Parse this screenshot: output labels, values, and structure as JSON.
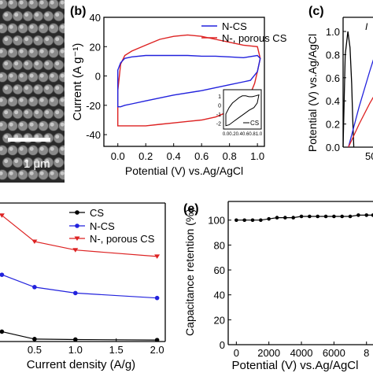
{
  "panels": {
    "a": {
      "scale_bar": "1 μm"
    },
    "b": {
      "label": "(b)",
      "xlabel": "Potential (V) vs.Ag/AgCl",
      "ylabel": "Current (A g⁻¹)",
      "xticks": [
        "0.0",
        "0.2",
        "0.4",
        "0.6",
        "0.8",
        "1.0"
      ],
      "yticks": [
        "40",
        "20",
        "0",
        "-20",
        "-40"
      ],
      "legend": [
        "N-CS",
        "N-, porous CS"
      ],
      "inset": {
        "xticks": [
          "0.0",
          "0.2",
          "0.4",
          "0.6",
          "0.8",
          "1.0"
        ],
        "yticks": [
          "1",
          "0",
          "-1",
          "-2"
        ],
        "legend": "CS"
      }
    },
    "c": {
      "label": "(c)",
      "ylabel": "Potential (V) vs.Ag/AgCl",
      "yticks": [
        "1.0",
        "0.8",
        "0.6",
        "0.4",
        "0.2",
        "0.0"
      ],
      "xtick_partial": "500",
      "legend_partial": "I"
    },
    "d": {
      "xlabel": "Current density (A/g)",
      "xticks": [
        "0.5",
        "1.0",
        "1.5",
        "2.0"
      ],
      "legend": [
        "CS",
        "N-CS",
        "N-, porous CS"
      ]
    },
    "e": {
      "label": "(e)",
      "xlabel": "Potential (V) vs.Ag/AgCl",
      "ylabel": "Capacitance retention (%)",
      "xticks": [
        "0",
        "2000",
        "4000",
        "6000",
        "8"
      ],
      "yticks": [
        "100",
        "80",
        "60",
        "40",
        "20",
        "0"
      ]
    }
  },
  "colors": {
    "n_cs": "#2222dd",
    "porous": "#dd2222",
    "cs": "#000000"
  },
  "chart_data": [
    {
      "panel": "b",
      "type": "line",
      "xlim": [
        -0.1,
        1.05
      ],
      "ylim": [
        -48,
        40
      ],
      "series": [
        {
          "name": "N-CS",
          "upper": {
            "x": [
              0.0,
              0.02,
              0.05,
              0.1,
              0.2,
              0.3,
              0.4,
              0.5,
              0.6,
              0.7,
              0.8,
              0.9,
              1.0,
              1.02
            ],
            "y": [
              4,
              9,
              12,
              13,
              14,
              14,
              14,
              14,
              13.5,
              13.5,
              13,
              12.5,
              14,
              12
            ]
          },
          "lower": {
            "x": [
              1.02,
              1.0,
              0.95,
              0.9,
              0.8,
              0.6,
              0.4,
              0.2,
              0.1,
              0.05,
              0.02,
              0.0
            ],
            "y": [
              12,
              3,
              -3,
              -4,
              -6,
              -10,
              -13,
              -17,
              -19,
              -20,
              -21,
              -21
            ]
          }
        },
        {
          "name": "N-, porous CS",
          "upper": {
            "x": [
              0.0,
              0.02,
              0.05,
              0.1,
              0.2,
              0.3,
              0.4,
              0.5,
              0.6,
              0.7,
              0.8,
              0.9,
              1.0,
              1.02
            ],
            "y": [
              -10,
              8,
              14,
              17,
              21,
              25,
              27,
              28,
              27,
              25,
              23,
              21,
              20,
              12
            ]
          },
          "lower": {
            "x": [
              1.02,
              1.0,
              0.98,
              0.95,
              0.9,
              0.85,
              0.8,
              0.7,
              0.6,
              0.5,
              0.4,
              0.3,
              0.2,
              0.1,
              0.05,
              0.0
            ],
            "y": [
              12,
              3,
              -5,
              -12,
              -18,
              -22,
              -24,
              -28,
              -30,
              -31,
              -32,
              -33,
              -34,
              -34,
              -34,
              -34
            ]
          }
        }
      ],
      "inset": {
        "xlim": [
          0,
          1.0
        ],
        "ylim": [
          -2.5,
          1.5
        ],
        "series": [
          {
            "name": "CS",
            "x": [
              0.0,
              0.1,
              0.2,
              0.3,
              0.4,
              0.5,
              0.6,
              0.7,
              0.8,
              0.9,
              1.0,
              0.95,
              0.85,
              0.7,
              0.55,
              0.4,
              0.25,
              0.1,
              0.0
            ],
            "y": [
              -1.0,
              -0.3,
              0.2,
              0.5,
              0.8,
              1.0,
              1.0,
              0.9,
              0.9,
              1.0,
              1.1,
              0.2,
              -0.3,
              -0.6,
              -1.0,
              -1.4,
              -1.8,
              -2.2,
              -2.3
            ]
          }
        ]
      }
    },
    {
      "panel": "c",
      "type": "line",
      "ylim": [
        0,
        1.1
      ],
      "series": [
        {
          "name": "CS",
          "x": [
            0,
            40,
            90,
            130,
            160,
            180,
            200
          ],
          "y": [
            0.0,
            0.8,
            1.0,
            0.86,
            0.55,
            0.25,
            0.0
          ]
        },
        {
          "name": "N-CS",
          "x": [
            100,
            300,
            500,
            700
          ],
          "y": [
            0.0,
            0.35,
            0.66,
            0.95
          ]
        },
        {
          "name": "N-, porous CS",
          "x": [
            100,
            300,
            500,
            700
          ],
          "y": [
            0.0,
            0.2,
            0.38,
            0.54
          ]
        }
      ]
    },
    {
      "panel": "d",
      "type": "line",
      "xlim": [
        0,
        2.1
      ],
      "x": [
        0.1,
        0.5,
        1.0,
        2.0
      ],
      "series": [
        {
          "name": "CS",
          "y": [
            40,
            25,
            24,
            23
          ]
        },
        {
          "name": "N-CS",
          "y": [
            155,
            130,
            118,
            108
          ]
        },
        {
          "name": "N-, porous CS",
          "y": [
            275,
            222,
            205,
            192
          ]
        }
      ],
      "ylim": [
        20,
        300
      ]
    },
    {
      "panel": "e",
      "type": "line",
      "xlim": [
        -500,
        8400
      ],
      "ylim": [
        0,
        115
      ],
      "series": [
        {
          "name": "retention",
          "x": [
            0,
            500,
            1000,
            1500,
            2000,
            2500,
            3000,
            3500,
            4000,
            4500,
            5000,
            5500,
            6000,
            6500,
            7000,
            7500,
            8000,
            8400
          ],
          "y": [
            100,
            100,
            100,
            100,
            101,
            102,
            102,
            102,
            103,
            103,
            103,
            103,
            103,
            103,
            103,
            104,
            104,
            104
          ]
        }
      ]
    }
  ]
}
